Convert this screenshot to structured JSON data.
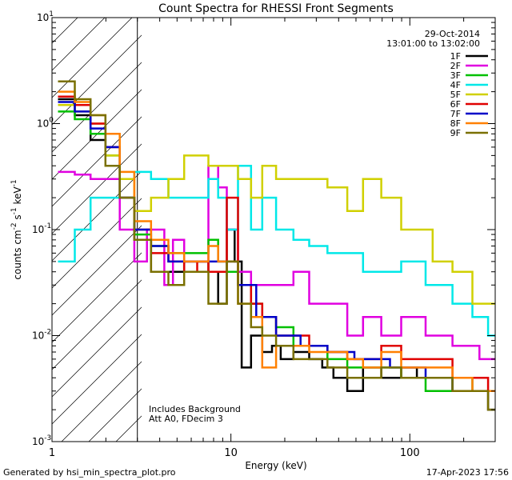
{
  "chart_data": {
    "type": "line",
    "title": "Count Spectra for RHESSI Front Segments",
    "xlabel": "Energy (keV)",
    "ylabel": "counts cm",
    "ylabel_sup1": "-2",
    "ylabel_mid": " s",
    "ylabel_sup2": "-1",
    "ylabel_end": " keV",
    "ylabel_sup3": "-1",
    "xscale": "log",
    "yscale": "log",
    "xlim": [
      1,
      300
    ],
    "ylim": [
      0.001,
      10
    ],
    "x_tick_labels": [
      "1",
      "10",
      "100"
    ],
    "y_tick_labels": [
      {
        "base": "10",
        "exp": "-3",
        "value": 0.001
      },
      {
        "base": "10",
        "exp": "-2",
        "value": 0.01
      },
      {
        "base": "10",
        "exp": "-1",
        "value": 0.1
      },
      {
        "base": "10",
        "exp": "0",
        "value": 1
      },
      {
        "base": "10",
        "exp": "1",
        "value": 10
      }
    ],
    "date": "29-Oct-2014",
    "time_range": "13:01:00 to 13:02:00",
    "annotation_line1": "Includes Background",
    "annotation_line2": "Att A0, FDecim 3",
    "hatched_region_xmax_kev": 3,
    "series": [
      {
        "name": "1F",
        "color": "#000000",
        "x": [
          1.2,
          1.5,
          1.8,
          2.2,
          2.6,
          3.2,
          4,
          5,
          6,
          7,
          8,
          9,
          10,
          11,
          12,
          14,
          16,
          18,
          20,
          25,
          30,
          35,
          40,
          50,
          60,
          80,
          100,
          120,
          150,
          200,
          250,
          300
        ],
        "values": [
          1.7,
          1.2,
          0.7,
          0.6,
          0.2,
          0.08,
          0.04,
          0.04,
          0.05,
          0.05,
          0.04,
          0.02,
          0.1,
          0.05,
          0.005,
          0.01,
          0.007,
          0.008,
          0.006,
          0.007,
          0.006,
          0.005,
          0.004,
          0.003,
          0.005,
          0.004,
          0.005,
          0.004,
          0.004,
          0.003,
          0.003,
          0.002
        ]
      },
      {
        "name": "2F",
        "color": "#e000e0",
        "x": [
          1.2,
          1.5,
          1.8,
          2.2,
          2.6,
          3.2,
          3.6,
          4,
          4.5,
          5,
          6,
          7,
          8,
          9,
          10,
          12,
          14,
          16,
          20,
          25,
          30,
          40,
          50,
          60,
          80,
          100,
          150,
          200,
          300
        ],
        "values": [
          0.35,
          0.33,
          0.3,
          0.3,
          0.1,
          0.05,
          0.1,
          0.1,
          0.03,
          0.08,
          0.05,
          0.05,
          0.4,
          0.25,
          0.1,
          0.04,
          0.03,
          0.03,
          0.03,
          0.04,
          0.02,
          0.02,
          0.01,
          0.015,
          0.01,
          0.015,
          0.01,
          0.008,
          0.006
        ]
      },
      {
        "name": "3F",
        "color": "#00c000",
        "x": [
          1.2,
          1.5,
          1.8,
          2.2,
          2.6,
          3.2,
          4,
          5,
          6,
          7,
          8,
          9,
          10,
          12,
          14,
          16,
          20,
          25,
          30,
          40,
          50,
          60,
          80,
          100,
          150,
          200,
          250,
          300
        ],
        "values": [
          1.3,
          1.1,
          0.8,
          0.5,
          0.2,
          0.09,
          0.07,
          0.06,
          0.06,
          0.06,
          0.08,
          0.05,
          0.04,
          0.03,
          0.02,
          0.015,
          0.012,
          0.008,
          0.008,
          0.006,
          0.005,
          0.005,
          0.005,
          0.004,
          0.003,
          0.004,
          0.003,
          0.003
        ]
      },
      {
        "name": "4F",
        "color": "#00e8e8",
        "x": [
          1.2,
          1.5,
          1.8,
          2.2,
          2.6,
          3.2,
          4,
          5,
          6,
          7,
          8,
          9,
          10,
          12,
          14,
          16,
          20,
          25,
          30,
          40,
          50,
          60,
          80,
          100,
          150,
          200,
          250,
          300
        ],
        "values": [
          0.05,
          0.1,
          0.2,
          0.2,
          0.3,
          0.35,
          0.3,
          0.2,
          0.2,
          0.2,
          0.3,
          0.2,
          0.1,
          0.4,
          0.1,
          0.2,
          0.1,
          0.08,
          0.07,
          0.06,
          0.06,
          0.04,
          0.04,
          0.05,
          0.03,
          0.02,
          0.015,
          0.01
        ]
      },
      {
        "name": "5F",
        "color": "#d0d000",
        "x": [
          1.2,
          1.5,
          1.8,
          2.2,
          2.6,
          3.2,
          4,
          5,
          6,
          7,
          8,
          9,
          10,
          12,
          14,
          16,
          20,
          25,
          30,
          40,
          50,
          60,
          80,
          100,
          120,
          150,
          200,
          250,
          300
        ],
        "values": [
          1.5,
          1.3,
          1.0,
          0.5,
          0.3,
          0.15,
          0.2,
          0.3,
          0.5,
          0.5,
          0.4,
          0.4,
          0.4,
          0.3,
          0.2,
          0.4,
          0.3,
          0.3,
          0.3,
          0.25,
          0.15,
          0.3,
          0.2,
          0.1,
          0.1,
          0.05,
          0.04,
          0.02,
          0.02
        ]
      },
      {
        "name": "6F",
        "color": "#e00000",
        "x": [
          1.2,
          1.5,
          1.8,
          2.2,
          2.6,
          3.2,
          4,
          5,
          6,
          7,
          8,
          9,
          10,
          12,
          14,
          16,
          20,
          25,
          30,
          40,
          50,
          60,
          80,
          100,
          150,
          200,
          250,
          300
        ],
        "values": [
          1.8,
          1.5,
          1.0,
          0.6,
          0.2,
          0.1,
          0.06,
          0.05,
          0.04,
          0.05,
          0.04,
          0.04,
          0.2,
          0.03,
          0.02,
          0.015,
          0.01,
          0.01,
          0.008,
          0.007,
          0.006,
          0.006,
          0.008,
          0.006,
          0.006,
          0.004,
          0.004,
          0.003
        ]
      },
      {
        "name": "7F",
        "color": "#0000c8",
        "x": [
          1.2,
          1.5,
          1.8,
          2.2,
          2.6,
          3.2,
          4,
          5,
          6,
          8,
          10,
          12,
          16,
          20,
          30,
          40,
          60,
          100,
          150,
          200,
          300
        ],
        "values": [
          1.6,
          1.3,
          0.9,
          0.6,
          0.2,
          0.1,
          0.07,
          0.05,
          0.05,
          0.05,
          0.05,
          0.03,
          0.015,
          0.01,
          0.008,
          0.007,
          0.006,
          0.005,
          0.004,
          0.003,
          0.003
        ]
      },
      {
        "name": "8F",
        "color": "#ff8000",
        "x": [
          1.2,
          1.5,
          1.8,
          2.2,
          2.6,
          3.2,
          4,
          5,
          6,
          7,
          8,
          9,
          10,
          12,
          14,
          16,
          20,
          25,
          30,
          40,
          50,
          60,
          80,
          100,
          150,
          200,
          250,
          300
        ],
        "values": [
          2.0,
          1.6,
          1.2,
          0.8,
          0.35,
          0.12,
          0.08,
          0.06,
          0.05,
          0.05,
          0.07,
          0.05,
          0.05,
          0.02,
          0.015,
          0.005,
          0.008,
          0.008,
          0.007,
          0.007,
          0.006,
          0.005,
          0.007,
          0.005,
          0.005,
          0.004,
          0.003,
          0.003
        ]
      },
      {
        "name": "9F",
        "color": "#7a7000",
        "x": [
          1.2,
          1.5,
          1.8,
          2.2,
          2.6,
          3.2,
          4,
          5,
          6,
          7,
          8,
          9,
          10,
          12,
          14,
          16,
          20,
          25,
          30,
          40,
          50,
          60,
          80,
          100,
          150,
          200,
          250,
          300
        ],
        "values": [
          2.5,
          1.7,
          1.2,
          0.4,
          0.2,
          0.08,
          0.04,
          0.03,
          0.04,
          0.04,
          0.02,
          0.02,
          0.05,
          0.02,
          0.012,
          0.01,
          0.008,
          0.006,
          0.006,
          0.005,
          0.004,
          0.004,
          0.005,
          0.004,
          0.004,
          0.003,
          0.003,
          0.002
        ]
      }
    ]
  },
  "footer": {
    "generated_by": "Generated by hsi_min_spectra_plot.pro",
    "timestamp": "17-Apr-2023 17:56"
  }
}
